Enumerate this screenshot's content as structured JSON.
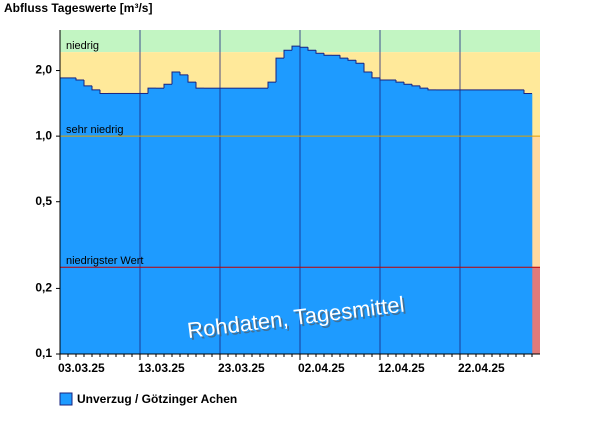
{
  "chart_data": {
    "type": "step-area",
    "title": "Abfluss Tageswerte [m³/s]",
    "annotation": "Rohdaten, Tagesmittel",
    "categories": [
      "03.03.25",
      null,
      null,
      null,
      null,
      null,
      null,
      null,
      null,
      null,
      "13.03.25",
      null,
      null,
      null,
      null,
      null,
      null,
      null,
      null,
      null,
      "23.03.25",
      null,
      null,
      null,
      null,
      null,
      null,
      null,
      null,
      null,
      "02.04.25",
      null,
      null,
      null,
      null,
      null,
      null,
      null,
      null,
      null,
      "12.04.25",
      null,
      null,
      null,
      null,
      null,
      null,
      null,
      null,
      null,
      "22.04.25",
      null,
      null,
      null,
      null,
      null,
      null,
      null,
      null,
      null
    ],
    "series": [
      {
        "name": "Unverzug / Götzinger Achen",
        "color": "#1e9bff",
        "line_color": "#1a237e",
        "values": [
          1.85,
          1.85,
          1.81,
          1.7,
          1.63,
          1.57,
          1.57,
          1.57,
          1.57,
          1.57,
          1.57,
          1.66,
          1.66,
          1.73,
          1.97,
          1.91,
          1.77,
          1.66,
          1.66,
          1.66,
          1.66,
          1.66,
          1.66,
          1.66,
          1.66,
          1.66,
          1.77,
          2.28,
          2.48,
          2.59,
          2.56,
          2.48,
          2.4,
          2.35,
          2.35,
          2.28,
          2.23,
          2.16,
          1.97,
          1.85,
          1.81,
          1.81,
          1.77,
          1.73,
          1.7,
          1.66,
          1.63,
          1.63,
          1.63,
          1.63,
          1.63,
          1.63,
          1.63,
          1.63,
          1.63,
          1.63,
          1.63,
          1.63,
          1.57,
          null
        ]
      }
    ],
    "log_scale": true,
    "ylim": [
      0.1,
      3.07
    ],
    "yticks": [
      {
        "value": 0.1,
        "label": "0,1"
      },
      {
        "value": 0.2,
        "label": "0,2"
      },
      {
        "value": 0.5,
        "label": "0,5"
      },
      {
        "value": 1.0,
        "label": "1,0"
      },
      {
        "value": 2.0,
        "label": "2,0"
      }
    ],
    "above_color": "#c2f5c2",
    "levels": [
      {
        "label": "niedrig",
        "value": 2.43,
        "color": "#ffe99a"
      },
      {
        "label": "sehr niedrig",
        "value": 1.0,
        "color": "#ffd9a0",
        "line": "#e0a000"
      },
      {
        "label": "niedrigster Wert",
        "value": 0.25,
        "color": "#e07a7a",
        "line": "#c00000"
      }
    ],
    "grid": true
  }
}
